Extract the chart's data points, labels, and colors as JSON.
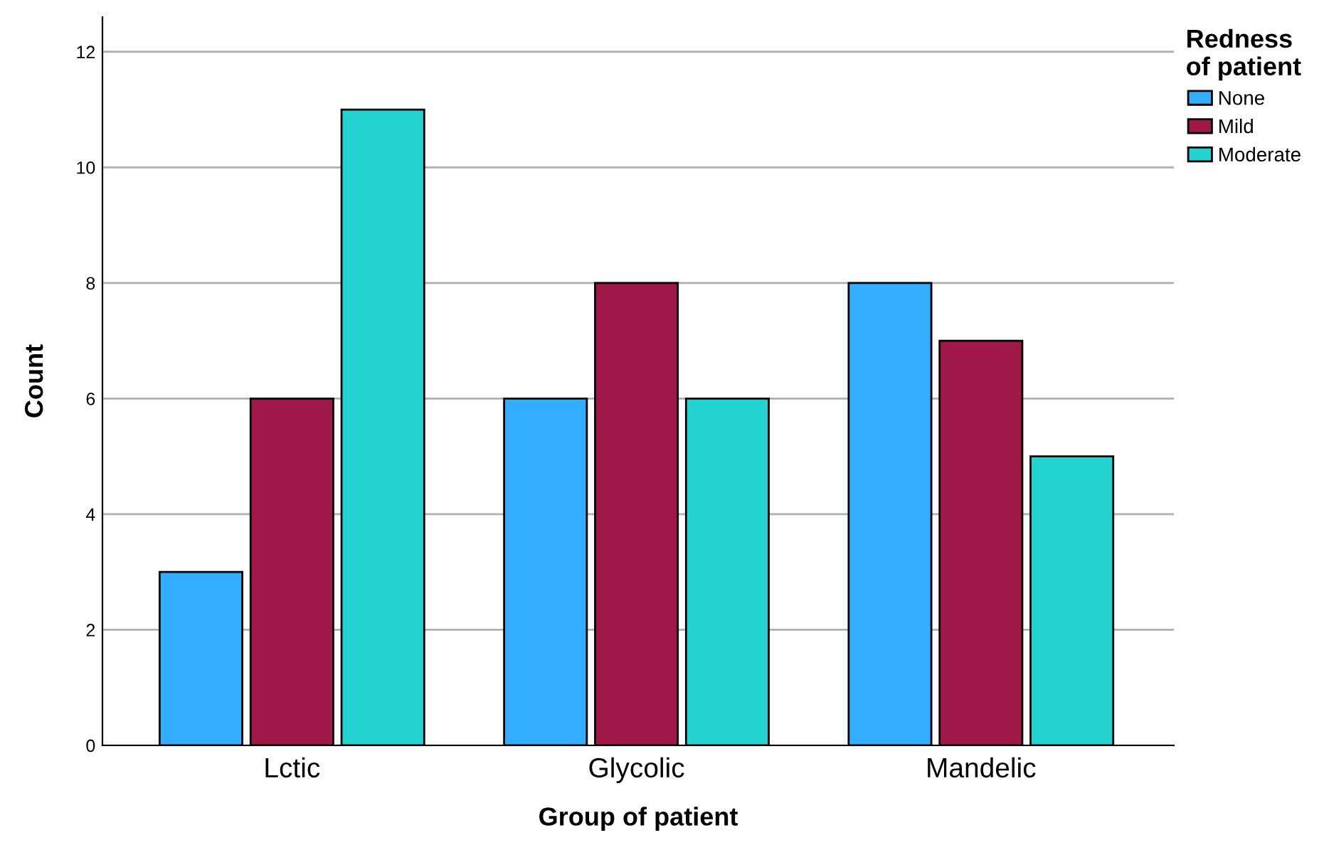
{
  "chart_data": {
    "type": "bar",
    "xlabel": "Group of patient",
    "ylabel": "Count",
    "legend_title": "Redness\nof patient",
    "categories": [
      "Lctic",
      "Glycolic",
      "Mandelic"
    ],
    "series": [
      {
        "name": "None",
        "color": "#33adff",
        "values": [
          3,
          6,
          8
        ]
      },
      {
        "name": "Mild",
        "color": "#a0174a",
        "values": [
          6,
          8,
          7
        ]
      },
      {
        "name": "Moderate",
        "color": "#22d3d0",
        "values": [
          11,
          6,
          5
        ]
      }
    ],
    "ylim": [
      0,
      12.6
    ],
    "yticks": [
      0,
      2,
      4,
      6,
      8,
      10,
      12
    ],
    "grid": "y",
    "legend": "top right"
  }
}
